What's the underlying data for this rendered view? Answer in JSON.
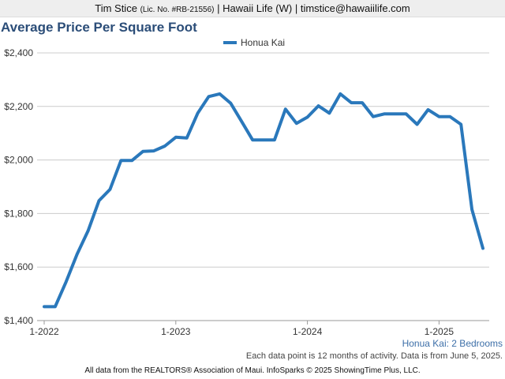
{
  "header": {
    "agent_name": "Tim Stice",
    "license": "(Lic. No. #RB-21556)",
    "rest": "| Hawaii Life (W) | timstice@hawaiilife.com"
  },
  "footer": {
    "series_note": "Honua Kai: 2 Bedrooms",
    "data_note": "Each data point is 12 months of activity. Data is from June 5, 2025.",
    "source": "All data from the REALTORS® Association of Maui. InfoSparks © 2025 ShowingTime Plus, LLC."
  },
  "colors": {
    "line": "#2a78bb",
    "title": "#2b4d78",
    "grid": "#cccccc"
  },
  "chart_data": {
    "type": "line",
    "title": "Average Price Per Square Foot",
    "xlabel": "",
    "ylabel": "",
    "x": [
      "2022-01",
      "2022-02",
      "2022-03",
      "2022-04",
      "2022-05",
      "2022-06",
      "2022-07",
      "2022-08",
      "2022-09",
      "2022-10",
      "2022-11",
      "2022-12",
      "2023-01",
      "2023-02",
      "2023-03",
      "2023-04",
      "2023-05",
      "2023-06",
      "2023-07",
      "2023-08",
      "2023-09",
      "2023-10",
      "2023-11",
      "2023-12",
      "2024-01",
      "2024-02",
      "2024-03",
      "2024-04",
      "2024-05",
      "2024-06",
      "2024-07",
      "2024-08",
      "2024-09",
      "2024-10",
      "2024-11",
      "2024-12",
      "2025-01",
      "2025-02",
      "2025-03",
      "2025-04",
      "2025-05"
    ],
    "series": [
      {
        "name": "Honua Kai",
        "values": [
          1452,
          1452,
          1545,
          1648,
          1735,
          1848,
          1890,
          1998,
          1998,
          2032,
          2034,
          2052,
          2085,
          2082,
          2175,
          2237,
          2247,
          2212,
          2144,
          2075,
          2075,
          2075,
          2190,
          2137,
          2160,
          2202,
          2175,
          2247,
          2214,
          2214,
          2162,
          2172,
          2172,
          2172,
          2133,
          2188,
          2162,
          2162,
          2133,
          1815,
          1670
        ]
      }
    ],
    "x_ticks": [
      "1-2022",
      "1-2023",
      "1-2024",
      "1-2025"
    ],
    "y_ticks": [
      "$1,400",
      "$1,600",
      "$1,800",
      "$2,000",
      "$2,200",
      "$2,400"
    ],
    "ylim": [
      1400,
      2400
    ],
    "grid": true,
    "legend": "top-center"
  }
}
